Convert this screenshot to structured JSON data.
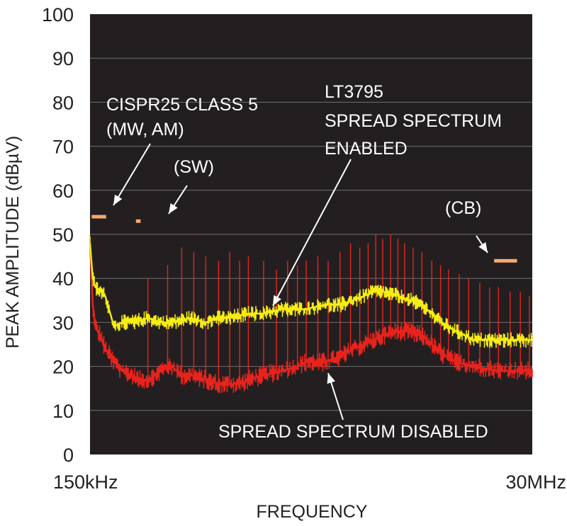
{
  "chart_data": {
    "type": "line",
    "title": "",
    "xlabel": "FREQUENCY",
    "ylabel": "PEAK AMPLITUDE (dBµV)",
    "xscale": "log",
    "xlim": [
      0.15,
      30
    ],
    "ylim": [
      0,
      100
    ],
    "ytick_values": [
      0,
      10,
      20,
      30,
      40,
      50,
      60,
      70,
      80,
      90,
      100
    ],
    "yticks": [
      "0",
      "10",
      "20",
      "30",
      "40",
      "50",
      "60",
      "70",
      "80",
      "90",
      "100"
    ],
    "xticks": [
      "150kHz",
      "30MHz"
    ],
    "grid": true,
    "background": "#231f20",
    "series": [
      {
        "name": "SPREAD SPECTRUM DISABLED",
        "color": "#e8231d",
        "x_mhz": [
          0.15,
          0.155,
          0.16,
          0.17,
          0.18,
          0.2,
          0.22,
          0.25,
          0.27,
          0.3,
          0.33,
          0.37,
          0.4,
          0.45,
          0.5,
          0.6,
          0.7,
          0.8,
          0.9,
          1.0,
          1.2,
          1.5,
          1.8,
          2.0,
          2.5,
          3.0,
          3.5,
          4.0,
          4.5,
          5.0,
          6.0,
          7.0,
          8.0,
          9.0,
          10.0,
          12.0,
          15.0,
          20.0,
          25.0,
          30.0
        ],
        "values": [
          48,
          34,
          29,
          27,
          24,
          21,
          19,
          18,
          17,
          17,
          18,
          20,
          20,
          18,
          18,
          17,
          16,
          16,
          16,
          17,
          18,
          19,
          20,
          21,
          21,
          22,
          24,
          25,
          26,
          27,
          28,
          28,
          27,
          25,
          23,
          21,
          20,
          19,
          19,
          19
        ],
        "peaks": [
          {
            "x_mhz": 0.3,
            "y": 40
          },
          {
            "x_mhz": 0.38,
            "y": 43
          },
          {
            "x_mhz": 0.45,
            "y": 47
          },
          {
            "x_mhz": 0.52,
            "y": 46
          },
          {
            "x_mhz": 0.6,
            "y": 45
          },
          {
            "x_mhz": 0.7,
            "y": 44
          },
          {
            "x_mhz": 0.8,
            "y": 46
          },
          {
            "x_mhz": 0.9,
            "y": 44
          },
          {
            "x_mhz": 1.0,
            "y": 45
          },
          {
            "x_mhz": 1.2,
            "y": 44
          },
          {
            "x_mhz": 1.4,
            "y": 42
          },
          {
            "x_mhz": 1.6,
            "y": 44
          },
          {
            "x_mhz": 1.8,
            "y": 43
          },
          {
            "x_mhz": 2.0,
            "y": 44
          },
          {
            "x_mhz": 2.3,
            "y": 45
          },
          {
            "x_mhz": 2.6,
            "y": 44
          },
          {
            "x_mhz": 3.0,
            "y": 46
          },
          {
            "x_mhz": 3.4,
            "y": 48
          },
          {
            "x_mhz": 3.8,
            "y": 47
          },
          {
            "x_mhz": 4.2,
            "y": 48
          },
          {
            "x_mhz": 4.6,
            "y": 50
          },
          {
            "x_mhz": 5.0,
            "y": 49
          },
          {
            "x_mhz": 5.5,
            "y": 50
          },
          {
            "x_mhz": 6.0,
            "y": 49
          },
          {
            "x_mhz": 6.5,
            "y": 48
          },
          {
            "x_mhz": 7.2,
            "y": 47
          },
          {
            "x_mhz": 8.0,
            "y": 46
          },
          {
            "x_mhz": 9.0,
            "y": 44
          },
          {
            "x_mhz": 10.0,
            "y": 43
          },
          {
            "x_mhz": 11.0,
            "y": 42
          },
          {
            "x_mhz": 12.5,
            "y": 41
          },
          {
            "x_mhz": 14.0,
            "y": 40
          },
          {
            "x_mhz": 16.0,
            "y": 39
          },
          {
            "x_mhz": 18.0,
            "y": 38
          },
          {
            "x_mhz": 20.0,
            "y": 38
          },
          {
            "x_mhz": 23.0,
            "y": 37
          },
          {
            "x_mhz": 26.0,
            "y": 37
          },
          {
            "x_mhz": 29.0,
            "y": 36
          }
        ]
      },
      {
        "name": "LT3795 SPREAD SPECTRUM ENABLED",
        "color": "#f7ec13",
        "x_mhz": [
          0.15,
          0.155,
          0.16,
          0.17,
          0.18,
          0.2,
          0.22,
          0.25,
          0.3,
          0.35,
          0.4,
          0.5,
          0.6,
          0.7,
          0.8,
          1.0,
          1.2,
          1.5,
          2.0,
          2.5,
          3.0,
          3.5,
          4.0,
          4.5,
          5.0,
          6.0,
          7.0,
          8.0,
          9.0,
          10.0,
          12.0,
          15.0,
          20.0,
          25.0,
          30.0
        ],
        "values": [
          48,
          40,
          38,
          37,
          36,
          29,
          30,
          30,
          31,
          30,
          30,
          31,
          30,
          31,
          31,
          32,
          32,
          33,
          33,
          34,
          34,
          35,
          36,
          37,
          37,
          36,
          35,
          34,
          32,
          30,
          28,
          26,
          26,
          26,
          26
        ]
      }
    ],
    "limit_lines": [
      {
        "label": "(MW, AM)",
        "x_mhz": [
          0.153,
          0.182
        ],
        "y": 54
      },
      {
        "label": "(SW)",
        "x_mhz": [
          0.26,
          0.275
        ],
        "y": 53
      },
      {
        "label": "(CB)",
        "x_mhz": [
          19.0,
          25.0
        ],
        "y": 44
      }
    ],
    "annotations": {
      "cispr_line1": "CISPR25 CLASS 5",
      "cispr_line2": "(MW, AM)",
      "sw": "(SW)",
      "cb": "(CB)",
      "enabled_line1": "LT3795",
      "enabled_line2": "SPREAD SPECTRUM",
      "enabled_line3": "ENABLED",
      "disabled": "SPREAD SPECTRUM DISABLED"
    }
  },
  "colors": {
    "plot_bg": "#231f20",
    "grid": "#6d6e71",
    "limit": "#f6a86c",
    "annotation": "#ffffff"
  }
}
